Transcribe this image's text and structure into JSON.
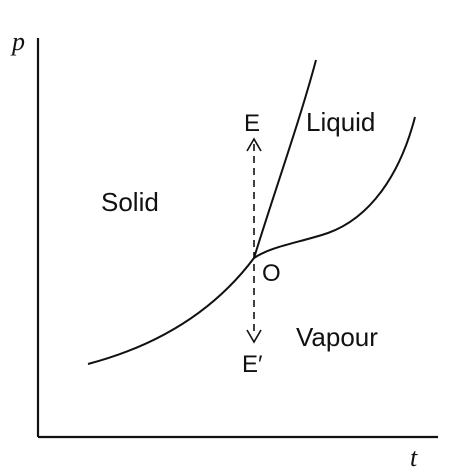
{
  "axes": {
    "y_label": "p",
    "x_label": "t"
  },
  "regions": {
    "solid": "Solid",
    "liquid": "Liquid",
    "vapour": "Vapour"
  },
  "points": {
    "triple_point": "O",
    "upper_end": "E",
    "lower_end": "E′"
  },
  "colors": {
    "ink": "#111111",
    "background": "#ffffff"
  }
}
